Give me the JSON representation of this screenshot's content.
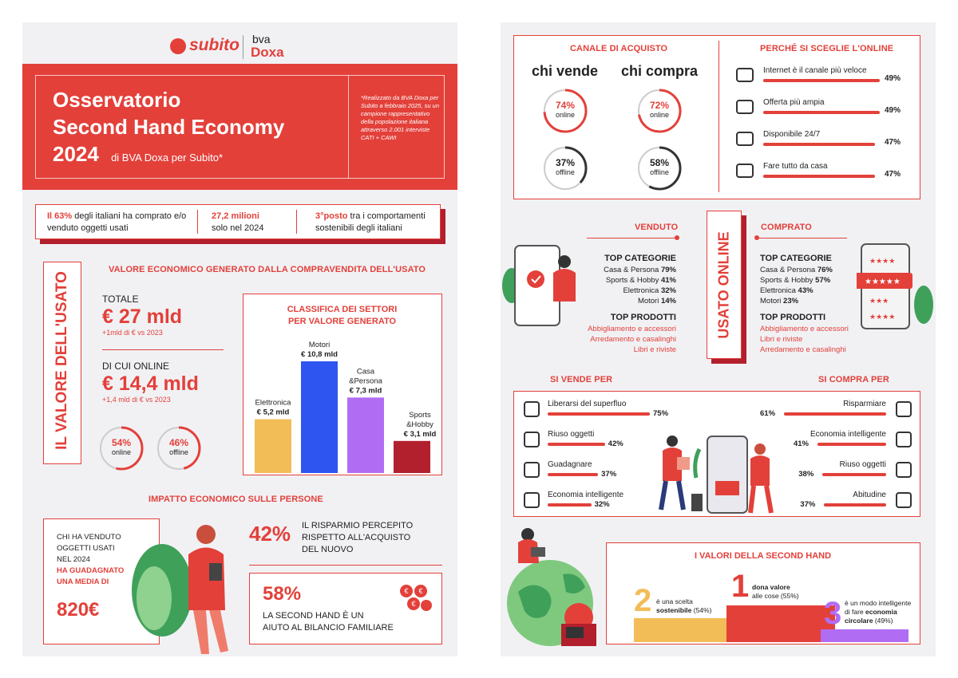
{
  "left": {
    "logo": {
      "subito": "subito",
      "bva": "bva",
      "doxa": "Doxa"
    },
    "header": {
      "title_line1": "Osservatorio",
      "title_line2": "Second Hand Economy",
      "title_year": "2024",
      "title_sub": "di BVA Doxa per Subito*",
      "note": "*Realizzato da BVA Doxa per Subito a febbraio 2025, su un campione rappresentativo della popolazione italiana attraverso 2.001 interviste CATI + CAWI"
    },
    "stats_strip": {
      "s1_pct": "Il 63%",
      "s1_text": " degli italiani ha comprato e/o venduto oggetti usati",
      "s2_big": "27,2 milioni",
      "s2_text": "solo nel 2024",
      "s3_big": "3°posto",
      "s3_text": " tra i comportamenti sostenibili degli italiani"
    },
    "valore": {
      "vertical_title": "IL VALORE DELL'USATO",
      "section_title": "VALORE ECONOMICO GENERATO DALLA COMPRAVENDITA DELL'USATO",
      "totale_label": "TOTALE",
      "totale_value": "€ 27 mld",
      "totale_delta": "+1mld di € vs 2023",
      "online_label": "DI CUI ONLINE",
      "online_value": "€ 14,4 mld",
      "online_delta": "+1,4 mld di € vs 2023",
      "ring_online_pct": "54%",
      "ring_online_label": "online",
      "ring_offline_pct": "46%",
      "ring_offline_label": "offline"
    },
    "classifica": {
      "title_line1": "CLASSIFICA DEI SETTORI",
      "title_line2": "PER VALORE GENERATO"
    },
    "chart_data": {
      "type": "bar",
      "categories": [
        "Elettronica",
        "Motori",
        "Casa &Persona",
        "Sports &Hobby"
      ],
      "values": [
        5.2,
        10.8,
        7.3,
        3.1
      ],
      "value_labels": [
        "€ 5,2 mld",
        "€ 10,8 mld",
        "€ 7,3 mld",
        "€ 3,1 mld"
      ],
      "colors": [
        "#f2bc57",
        "#2f55f0",
        "#b16cf4",
        "#b21f2d"
      ],
      "title": "CLASSIFICA DEI SETTORI PER VALORE GENERATO"
    },
    "impatto": {
      "title": "IMPATTO ECONOMICO SULLE PERSONE",
      "chi_line1": "CHI HA VENDUTO",
      "chi_line2": "OGGETTI USATI",
      "chi_line3": "NEL 2024",
      "chi_line4": "HA GUADAGNATO",
      "chi_line5": "UNA MEDIA DI",
      "chi_value": "820€",
      "p42": "42%",
      "p42_text_line1": "IL RISPARMIO PERCEPITO",
      "p42_text_line2": "RISPETTO ALL'ACQUISTO",
      "p42_text_line3": "DEL NUOVO",
      "p58": "58%",
      "p58_text_line1": "LA SECOND HAND È UN",
      "p58_text_line2": "AIUTO AL BILANCIO FAMILIARE"
    }
  },
  "right": {
    "canale": {
      "title": "CANALE DI ACQUISTO",
      "chi_vende": "chi vende",
      "chi_compra": "chi compra",
      "v_online_pct": "74%",
      "v_online": "online",
      "v_online_val": 0.74,
      "v_offline_pct": "37%",
      "v_offline": "offline",
      "v_offline_val": 0.37,
      "c_online_pct": "72%",
      "c_online": "online",
      "c_online_val": 0.72,
      "c_offline_pct": "58%",
      "c_offline": "offline",
      "c_offline_val": 0.58
    },
    "perche": {
      "title": "PERCHÉ SI SCEGLIE L'ONLINE",
      "items": [
        {
          "label": "Internet è il canale più veloce",
          "pct": "49%",
          "value": 49
        },
        {
          "label": "Offerta più ampia",
          "pct": "49%",
          "value": 49
        },
        {
          "label": "Disponibile 24/7",
          "pct": "47%",
          "value": 47
        },
        {
          "label": "Fare tutto da casa",
          "pct": "47%",
          "value": 47
        }
      ]
    },
    "usato_online": {
      "vertical_title": "USATO ONLINE",
      "venduto": "VENDUTO",
      "comprato": "COMPRATO",
      "top_cat": "TOP CATEGORIE",
      "top_prod": "TOP PRODOTTI",
      "v_cats": [
        {
          "name": "Casa & Persona ",
          "pct": "79%"
        },
        {
          "name": "Sports & Hobby ",
          "pct": "41%"
        },
        {
          "name": "Elettronica ",
          "pct": "32%"
        },
        {
          "name": "Motori ",
          "pct": "14%"
        }
      ],
      "v_prods": [
        "Abbigliamento e accessori",
        "Arredamento e casalinghi",
        "Libri e riviste"
      ],
      "c_cats": [
        {
          "name": "Casa & Persona ",
          "pct": "76%"
        },
        {
          "name": "Sports & Hobby ",
          "pct": "57%"
        },
        {
          "name": "Elettronica ",
          "pct": "43%"
        },
        {
          "name": "Motori ",
          "pct": "23%"
        }
      ],
      "c_prods": [
        "Abbigliamento e accessori",
        "Libri e riviste",
        "Arredamento e casalinghi"
      ]
    },
    "vende_compra": {
      "vende_title": "SI VENDE PER",
      "compra_title": "SI COMPRA PER",
      "vende": [
        {
          "label": "Liberarsi del superfluo",
          "pct": "75%",
          "value": 75
        },
        {
          "label": "Riuso oggetti",
          "pct": "42%",
          "value": 42
        },
        {
          "label": "Guadagnare",
          "pct": "37%",
          "value": 37
        },
        {
          "label": "Economia intelligente",
          "pct": "32%",
          "value": 32
        }
      ],
      "compra": [
        {
          "label": "Risparmiare",
          "pct": "61%",
          "value": 61
        },
        {
          "label": "Economia intelligente",
          "pct": "41%",
          "value": 41
        },
        {
          "label": "Riuso oggetti",
          "pct": "38%",
          "value": 38
        },
        {
          "label": "Abitudine",
          "pct": "37%",
          "value": 37
        }
      ]
    },
    "valori": {
      "title": "I VALORI DELLA SECOND HAND",
      "n1": "1",
      "t1_line1": "dona valore",
      "t1_line2": "alle cose (55%)",
      "n2": "2",
      "t2_line1": "è una scelta",
      "t2_bold": "sostenibile",
      "t2_rest": " (54%)",
      "n3": "3",
      "t3_line1": "è un modo intelligente",
      "t3_line2": "di fare ",
      "t3_bold1": "economia",
      "t3_bold2": "circolare",
      "t3_rest": " (49%)",
      "colors": {
        "first": "#e3403a",
        "second": "#f2bc57",
        "third": "#b16cf4"
      }
    }
  }
}
